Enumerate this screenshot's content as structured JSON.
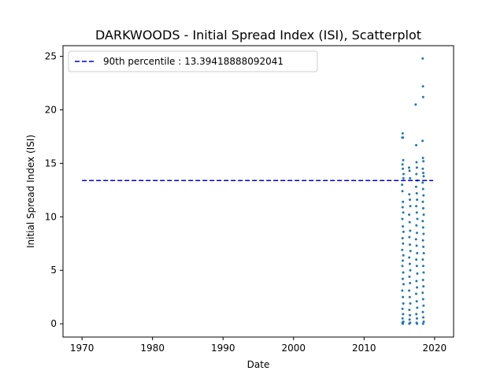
{
  "chart_data": {
    "type": "scatter",
    "title": "DARKWOODS - Initial Spread Index (ISI), Scatterplot",
    "xlabel": "Date",
    "ylabel": "Initial Spread Index (ISI)",
    "xlim": [
      1967.3,
      2022.7
    ],
    "ylim": [
      -1.24,
      26.0
    ],
    "xticks": [
      1970,
      1980,
      1990,
      2000,
      2010,
      2020
    ],
    "yticks": [
      0,
      5,
      10,
      15,
      20,
      25
    ],
    "grid": false,
    "legend": {
      "placement": "top-left",
      "entries": [
        {
          "label": "90th percentile : 13.39418888092041",
          "color": "#0000cc",
          "style": "dashed"
        }
      ]
    },
    "percentile_line": {
      "y": 13.39418888092041,
      "x_start": 1970,
      "x_end": 2019.8,
      "color": "#0000cc"
    },
    "point_color": "#1f77b4",
    "seasons": [
      {
        "x_start": 2015.3,
        "x_end": 2015.8
      },
      {
        "x_start": 2016.3,
        "x_end": 2016.8
      },
      {
        "x_start": 2017.3,
        "x_end": 2017.8
      },
      {
        "x_start": 2018.3,
        "x_end": 2018.8
      }
    ],
    "series": [
      {
        "points": [
          [
            2015.42,
            17.4
          ],
          [
            2015.48,
            17.8
          ],
          [
            2015.52,
            17.4
          ],
          [
            2015.55,
            15.3
          ],
          [
            2015.45,
            14.9
          ],
          [
            2015.5,
            14.5
          ],
          [
            2015.6,
            14.0
          ],
          [
            2015.58,
            13.6
          ],
          [
            2015.4,
            13.0
          ],
          [
            2015.44,
            12.4
          ],
          [
            2015.52,
            11.4
          ],
          [
            2015.47,
            10.9
          ],
          [
            2015.56,
            10.4
          ],
          [
            2015.43,
            9.8
          ],
          [
            2015.5,
            9.1
          ],
          [
            2015.59,
            8.6
          ],
          [
            2015.46,
            8.0
          ],
          [
            2015.53,
            7.5
          ],
          [
            2015.41,
            6.9
          ],
          [
            2015.57,
            6.4
          ],
          [
            2015.49,
            5.9
          ],
          [
            2015.44,
            5.4
          ],
          [
            2015.55,
            4.8
          ],
          [
            2015.48,
            4.2
          ],
          [
            2015.6,
            3.7
          ],
          [
            2015.42,
            3.1
          ],
          [
            2015.51,
            2.5
          ],
          [
            2015.57,
            1.9
          ],
          [
            2015.45,
            1.4
          ],
          [
            2015.53,
            0.9
          ],
          [
            2015.47,
            0.5
          ],
          [
            2015.58,
            0.2
          ],
          [
            2015.5,
            0.0
          ],
          [
            2015.44,
            0.1
          ],
          [
            2016.38,
            14.6
          ],
          [
            2016.45,
            14.3
          ],
          [
            2016.52,
            13.6
          ],
          [
            2016.42,
            12.1
          ],
          [
            2016.5,
            11.6
          ],
          [
            2016.56,
            11.0
          ],
          [
            2016.4,
            10.2
          ],
          [
            2016.47,
            9.5
          ],
          [
            2016.54,
            8.7
          ],
          [
            2016.43,
            8.1
          ],
          [
            2016.5,
            7.4
          ],
          [
            2016.58,
            6.8
          ],
          [
            2016.41,
            6.2
          ],
          [
            2016.49,
            5.6
          ],
          [
            2016.55,
            5.0
          ],
          [
            2016.44,
            4.4
          ],
          [
            2016.52,
            3.8
          ],
          [
            2016.4,
            3.1
          ],
          [
            2016.48,
            2.5
          ],
          [
            2016.56,
            1.9
          ],
          [
            2016.43,
            1.3
          ],
          [
            2016.5,
            0.8
          ],
          [
            2016.46,
            0.4
          ],
          [
            2016.54,
            0.1
          ],
          [
            2016.42,
            0.0
          ],
          [
            2017.32,
            20.5
          ],
          [
            2017.4,
            16.7
          ],
          [
            2017.45,
            15.1
          ],
          [
            2017.5,
            14.6
          ],
          [
            2017.42,
            14.0
          ],
          [
            2017.55,
            13.4
          ],
          [
            2017.38,
            12.8
          ],
          [
            2017.47,
            12.2
          ],
          [
            2017.52,
            11.6
          ],
          [
            2017.4,
            11.0
          ],
          [
            2017.48,
            10.4
          ],
          [
            2017.56,
            9.8
          ],
          [
            2017.43,
            9.2
          ],
          [
            2017.5,
            8.5
          ],
          [
            2017.37,
            7.9
          ],
          [
            2017.46,
            7.3
          ],
          [
            2017.53,
            6.6
          ],
          [
            2017.41,
            6.0
          ],
          [
            2017.49,
            5.4
          ],
          [
            2017.55,
            4.7
          ],
          [
            2017.44,
            4.0
          ],
          [
            2017.51,
            3.4
          ],
          [
            2017.39,
            2.8
          ],
          [
            2017.47,
            2.1
          ],
          [
            2017.54,
            1.5
          ],
          [
            2017.42,
            0.9
          ],
          [
            2017.5,
            0.5
          ],
          [
            2017.45,
            0.1
          ],
          [
            2017.52,
            0.0
          ],
          [
            2018.32,
            24.8
          ],
          [
            2018.35,
            22.2
          ],
          [
            2018.38,
            21.2
          ],
          [
            2018.3,
            17.1
          ],
          [
            2018.36,
            15.5
          ],
          [
            2018.42,
            15.2
          ],
          [
            2018.33,
            14.5
          ],
          [
            2018.4,
            14.1
          ],
          [
            2018.45,
            13.8
          ],
          [
            2018.31,
            13.2
          ],
          [
            2018.37,
            12.6
          ],
          [
            2018.43,
            12.0
          ],
          [
            2018.34,
            11.4
          ],
          [
            2018.4,
            10.8
          ],
          [
            2018.46,
            10.2
          ],
          [
            2018.32,
            9.6
          ],
          [
            2018.38,
            9.0
          ],
          [
            2018.44,
            8.4
          ],
          [
            2018.35,
            7.8
          ],
          [
            2018.41,
            7.2
          ],
          [
            2018.47,
            6.6
          ],
          [
            2018.33,
            6.0
          ],
          [
            2018.39,
            5.4
          ],
          [
            2018.45,
            4.8
          ],
          [
            2018.36,
            4.1
          ],
          [
            2018.42,
            3.5
          ],
          [
            2018.31,
            2.9
          ],
          [
            2018.38,
            2.3
          ],
          [
            2018.44,
            1.7
          ],
          [
            2018.34,
            1.1
          ],
          [
            2018.4,
            0.6
          ],
          [
            2018.46,
            0.2
          ],
          [
            2018.37,
            0.0
          ]
        ]
      }
    ]
  }
}
